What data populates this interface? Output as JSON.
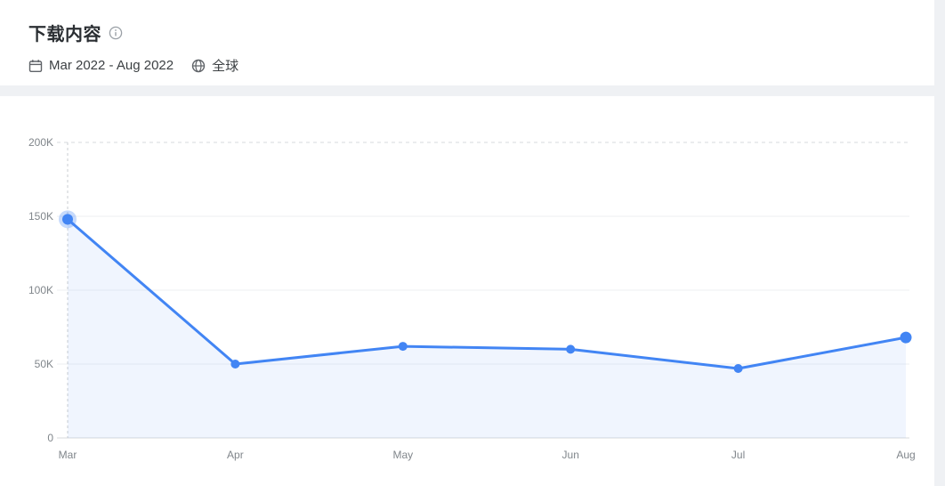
{
  "header": {
    "title": "下载内容",
    "date_range": "Mar 2022 - Aug 2022",
    "region": "全球"
  },
  "chart_data": {
    "type": "area",
    "title": "下载内容",
    "x": [
      "Mar",
      "Apr",
      "May",
      "Jun",
      "Jul",
      "Aug"
    ],
    "values": [
      148000,
      50000,
      62000,
      60000,
      47000,
      68000
    ],
    "y_ticks": [
      "0",
      "50K",
      "100K",
      "150K",
      "200K"
    ],
    "ylim": [
      0,
      200000
    ],
    "line_color": "#4285f4",
    "area_opacity": 0.08,
    "halo_opacity": 0.3,
    "grid": true,
    "legend": "none",
    "highlight_index": 0
  }
}
